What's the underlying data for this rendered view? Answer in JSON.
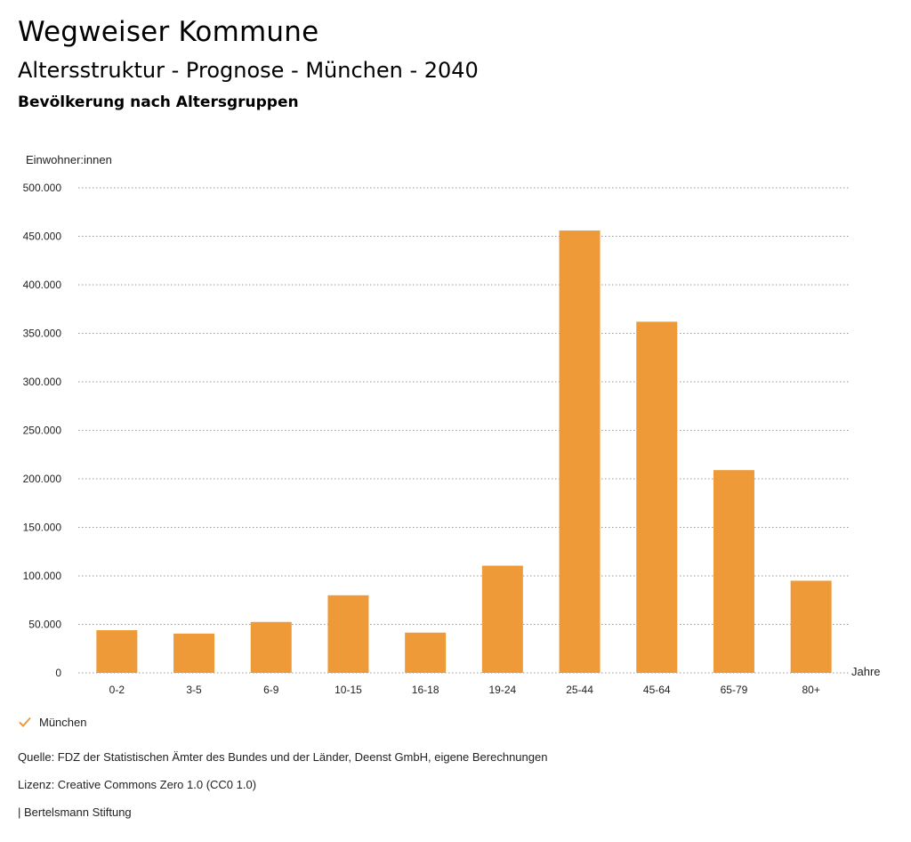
{
  "header": {
    "title": "Wegweiser Kommune",
    "subtitle": "Altersstruktur - Prognose - München - 2040",
    "section": "Bevölkerung nach Altersgruppen"
  },
  "chart_data": {
    "type": "bar",
    "ylabel": "Einwohner:innen",
    "xlabel": "Jahre",
    "categories": [
      "0-2",
      "3-5",
      "6-9",
      "10-15",
      "16-18",
      "19-24",
      "25-44",
      "45-64",
      "65-79",
      "80+"
    ],
    "series": [
      {
        "name": "München",
        "values": [
          44000,
          40500,
          52500,
          80000,
          41500,
          110500,
          456000,
          362000,
          209000,
          95000
        ]
      }
    ],
    "yticks": [
      "0",
      "50.000",
      "100.000",
      "150.000",
      "200.000",
      "250.000",
      "300.000",
      "350.000",
      "400.000",
      "450.000",
      "500.000"
    ],
    "ylim": [
      0,
      500000
    ],
    "grid": true,
    "legend_position": "bottom-left",
    "bar_color": "#EE9A38"
  },
  "legend": {
    "label": "München"
  },
  "footer": {
    "source": "Quelle: FDZ der Statistischen Ämter des Bundes und der Länder, Deenst GmbH, eigene Berechnungen",
    "license": "Lizenz: Creative Commons Zero 1.0 (CC0 1.0)",
    "publisher": "| Bertelsmann Stiftung"
  }
}
